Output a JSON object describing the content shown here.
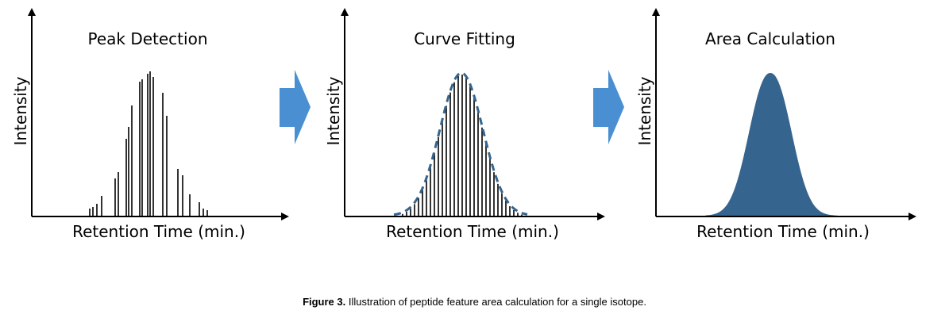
{
  "panels": [
    {
      "title": "Peak Detection",
      "ylabel": "Intensity",
      "xlabel": "Retention Time (min.)"
    },
    {
      "title": "Curve Fitting",
      "ylabel": "Intensity",
      "xlabel": "Retention Time (min.)"
    },
    {
      "title": "Area Calculation",
      "ylabel": "Intensity",
      "xlabel": "Retention Time (min.)"
    }
  ],
  "caption": {
    "label": "Figure 3.",
    "text": " Illustration of peptide feature area calculation for a single isotope."
  },
  "colors": {
    "arrow": "#4a8fd1",
    "curve": "#35648e",
    "fill": "#35648e",
    "axis": "#000000"
  }
}
